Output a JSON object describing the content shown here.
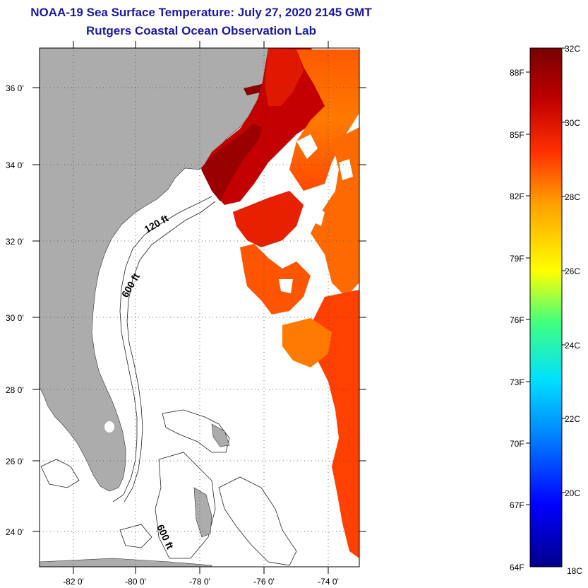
{
  "header": {
    "title": "NOAA-19 Sea Surface Temperature:  July 27, 2020 2145 GMT",
    "subtitle": "Rutgers Coastal Ocean Observation Lab"
  },
  "map": {
    "lat_labels": [
      "36 0'",
      "34 0'",
      "32 0'",
      "30 0'",
      "28 0'",
      "26 0'",
      "24 0'"
    ],
    "lon_labels": [
      "-82 0'",
      "-80 0'",
      "-78 0'",
      "-76 0'",
      "-74 0'"
    ],
    "contour_labels": [
      "120 ft",
      "600 ft",
      "600 ft"
    ],
    "colors": {
      "land": "#acacac",
      "ocean": "#ffffff",
      "grid": "#444444"
    }
  },
  "colorbar": {
    "fahrenheit_labels": [
      "88F",
      "85F",
      "82F",
      "79F",
      "76F",
      "73F",
      "70F",
      "67F",
      "64F"
    ],
    "celsius_labels": [
      "32C",
      "30C",
      "28C",
      "26C",
      "24C",
      "22C",
      "20C",
      "18C"
    ],
    "range_c": [
      18,
      32
    ],
    "colors": [
      "#00008b",
      "#0000ff",
      "#0080ff",
      "#00e0ff",
      "#40ff80",
      "#ffff00",
      "#ffa000",
      "#ff3000",
      "#c00000",
      "#780000"
    ]
  }
}
